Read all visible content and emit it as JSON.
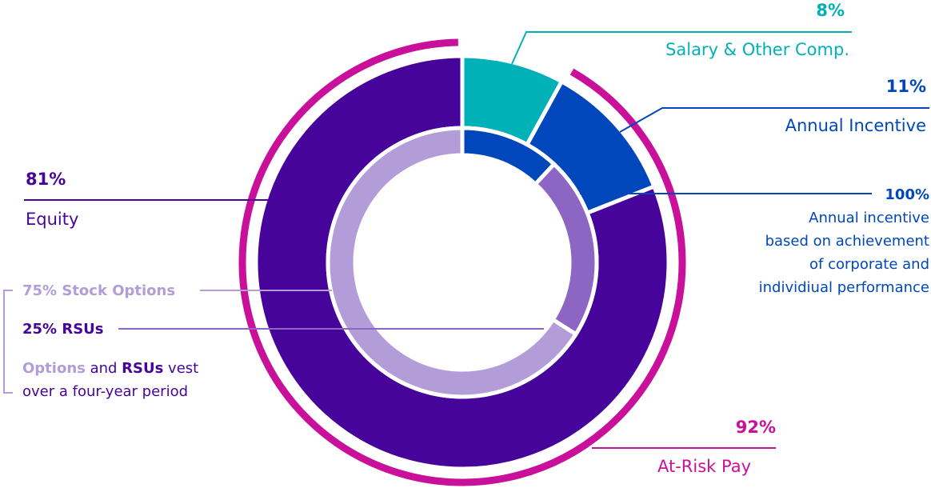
{
  "colors": {
    "salary": "#00b1b7",
    "annual": "#0047bb",
    "equity": "#46049a",
    "at_risk": "#c9109a",
    "stock_options": "#b39dd8",
    "rsus": "#8c66c2"
  },
  "chart_data": {
    "type": "donut",
    "outer_ring": {
      "name": "At-Risk Pay",
      "label": "92%",
      "start": 0.08,
      "end": 1.0,
      "gap_segment": "Salary & Other Comp."
    },
    "middle_ring": [
      {
        "name": "Salary & Other Comp.",
        "value": 8,
        "label": "8%",
        "color_key": "salary"
      },
      {
        "name": "Annual Incentive",
        "value": 11,
        "label": "11%",
        "color_key": "annual"
      },
      {
        "name": "Equity",
        "value": 81,
        "label": "81%",
        "color_key": "equity"
      }
    ],
    "inner_ring": [
      {
        "name": "Annual incentive",
        "value": 11,
        "label": "100%",
        "color_key": "annual"
      },
      {
        "name": "RSUs",
        "value": 20.25,
        "label": "25% RSUs",
        "color_key": "rsus"
      },
      {
        "name": "Stock Options",
        "value": 60.75,
        "label": "75% Stock Options",
        "color_key": "stock_options"
      }
    ]
  },
  "labels": {
    "salary_pct": "8%",
    "salary_name": "Salary & Other Comp.",
    "annual_pct": "11%",
    "annual_name": "Annual Incentive",
    "annual_detail_pct": "100%",
    "annual_detail_lines": [
      "Annual incentive",
      "based on achievement",
      "of corporate and",
      "individiual performance"
    ],
    "equity_pct": "81%",
    "equity_name": "Equity",
    "stock_options": "75% Stock Options",
    "rsus": "25% RSUs",
    "vest_options": "Options",
    "vest_and": " and ",
    "vest_rsus": "RSUs",
    "vest_rest": " vest",
    "vest_line2": "over a four-year period",
    "at_risk_pct": "92%",
    "at_risk_name": "At-Risk Pay"
  }
}
